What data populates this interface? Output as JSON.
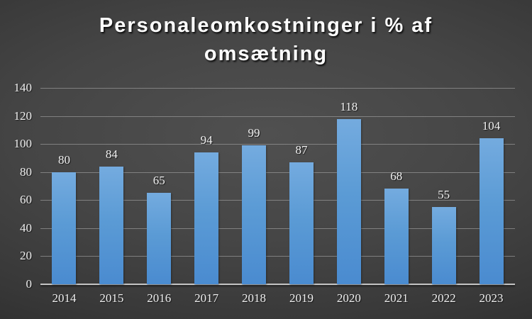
{
  "title": {
    "line1": "Personaleomkostninger i % af",
    "line2": "omsætning"
  },
  "chart_data": {
    "type": "bar",
    "title": "Personaleomkostninger i % af omsætning",
    "categories": [
      "2014",
      "2015",
      "2016",
      "2017",
      "2018",
      "2019",
      "2020",
      "2021",
      "2022",
      "2023"
    ],
    "values": [
      80,
      84,
      65,
      94,
      99,
      87,
      118,
      68,
      55,
      104
    ],
    "xlabel": "",
    "ylabel": "",
    "ylim": [
      0,
      140
    ],
    "yticks": [
      0,
      20,
      40,
      60,
      80,
      100,
      120,
      140
    ],
    "grid": true,
    "legend": "none",
    "data_labels": true
  },
  "colors": {
    "bar_top": "#74abdf",
    "bar_bottom": "#4a8bd0",
    "bar_base": "#5b9bd5",
    "background_center": "#505050",
    "background_edge": "#1d1d1d",
    "gridline": "#949494",
    "axis_line": "#c4c4c4",
    "tick_text": "#eeeeee",
    "data_label_text": "#f2f2f2",
    "title_text": "#ffffff"
  }
}
